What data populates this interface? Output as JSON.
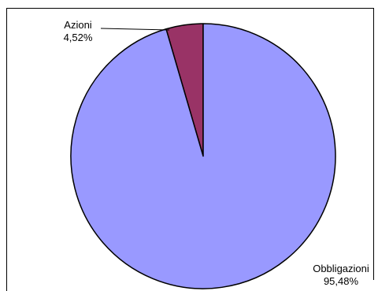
{
  "chart_data": {
    "type": "pie",
    "slices": [
      {
        "label": "Azioni",
        "value": 4.52,
        "value_text": "4,52%",
        "color": "#993366"
      },
      {
        "label": "Obbligazioni",
        "value": 95.48,
        "value_text": "95,48%",
        "color": "#9999FF"
      }
    ],
    "start": "top",
    "direction": "counterclockwise",
    "legend": "none"
  }
}
